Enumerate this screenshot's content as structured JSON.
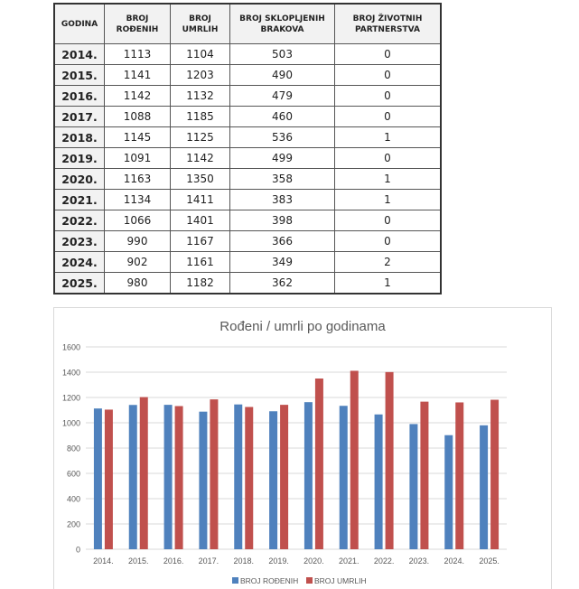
{
  "table": {
    "headers": [
      "GODINA",
      "BROJ ROĐENIH",
      "BROJ UMRLIH",
      "BROJ SKLOPLJENIH BRAKOVA",
      "BROJ ŽIVOTNIH PARTNERSTVA"
    ],
    "rows": [
      [
        "2014.",
        "1113",
        "1104",
        "503",
        "0"
      ],
      [
        "2015.",
        "1141",
        "1203",
        "490",
        "0"
      ],
      [
        "2016.",
        "1142",
        "1132",
        "479",
        "0"
      ],
      [
        "2017.",
        "1088",
        "1185",
        "460",
        "0"
      ],
      [
        "2018.",
        "1145",
        "1125",
        "536",
        "1"
      ],
      [
        "2019.",
        "1091",
        "1142",
        "499",
        "0"
      ],
      [
        "2020.",
        "1163",
        "1350",
        "358",
        "1"
      ],
      [
        "2021.",
        "1134",
        "1411",
        "383",
        "1"
      ],
      [
        "2022.",
        "1066",
        "1401",
        "398",
        "0"
      ],
      [
        "2023.",
        "990",
        "1167",
        "366",
        "0"
      ],
      [
        "2024.",
        "902",
        "1161",
        "349",
        "2"
      ],
      [
        "2025.",
        "980",
        "1182",
        "362",
        "1"
      ]
    ]
  },
  "chart_data": {
    "type": "bar",
    "title": "Rođeni / umrli po godinama",
    "categories": [
      "2014.",
      "2015.",
      "2016.",
      "2017.",
      "2018.",
      "2019.",
      "2020.",
      "2021.",
      "2022.",
      "2023.",
      "2024.",
      "2025."
    ],
    "series": [
      {
        "name": "BROJ ROĐENIH",
        "color": "#4f81bd",
        "values": [
          1113,
          1141,
          1142,
          1088,
          1145,
          1091,
          1163,
          1134,
          1066,
          990,
          902,
          980
        ]
      },
      {
        "name": "BROJ UMRLIH",
        "color": "#c0504d",
        "values": [
          1104,
          1203,
          1132,
          1185,
          1125,
          1142,
          1350,
          1411,
          1401,
          1167,
          1161,
          1182
        ]
      }
    ],
    "ylim": [
      0,
      1600
    ],
    "yticks": [
      "0",
      "200",
      "400",
      "600",
      "800",
      "1000",
      "1200",
      "1400",
      "1600"
    ],
    "xlabel": "",
    "ylabel": "",
    "grid": true,
    "legend": "bottom"
  }
}
